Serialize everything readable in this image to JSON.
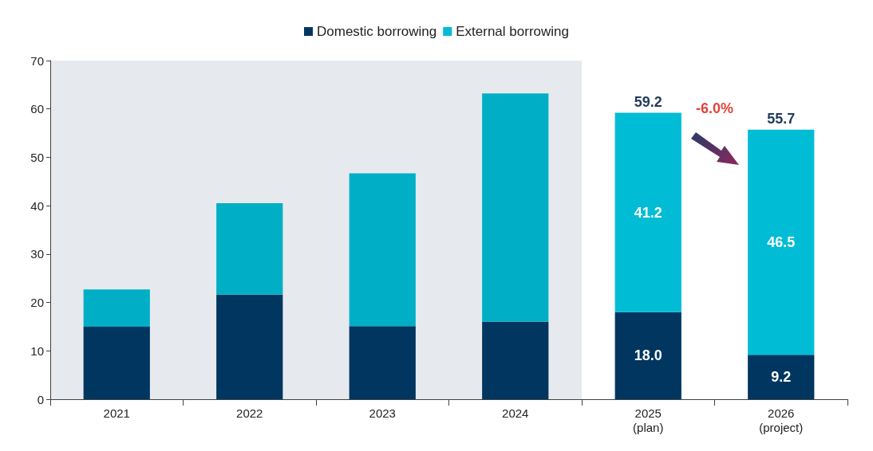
{
  "chart_data": {
    "type": "bar",
    "stacked": true,
    "categories": [
      "2021",
      "2022",
      "2023",
      "2024",
      "2025\n(plan)",
      "2026\n(project)"
    ],
    "series": [
      {
        "name": "Domestic borrowing",
        "color": "#003660",
        "values": [
          15.0,
          21.6,
          15.1,
          16.0,
          18.0,
          9.2
        ],
        "value_labels": [
          null,
          null,
          null,
          null,
          "18.0",
          "9.2"
        ]
      },
      {
        "name": "External borrowing",
        "color": "#00bcd4",
        "colors": [
          "#00afc6",
          "#00afc6",
          "#00afc6",
          "#00afc6",
          "#00bcd4",
          "#00bcd4"
        ],
        "values": [
          7.7,
          18.9,
          31.6,
          47.2,
          41.2,
          46.5
        ],
        "value_labels": [
          null,
          null,
          null,
          null,
          "41.2",
          "46.5"
        ]
      }
    ],
    "totals": [
      null,
      null,
      null,
      null,
      "59.2",
      "55.7"
    ],
    "ylim": [
      0,
      70
    ],
    "yticks": [
      0,
      10,
      20,
      30,
      40,
      50,
      60,
      70
    ],
    "grid": false,
    "legend": "top",
    "bands": [
      {
        "axis": "x",
        "from": "2021",
        "to": "2024",
        "color": "#e6eaee"
      }
    ],
    "annotations": [
      "-6.0%"
    ]
  }
}
